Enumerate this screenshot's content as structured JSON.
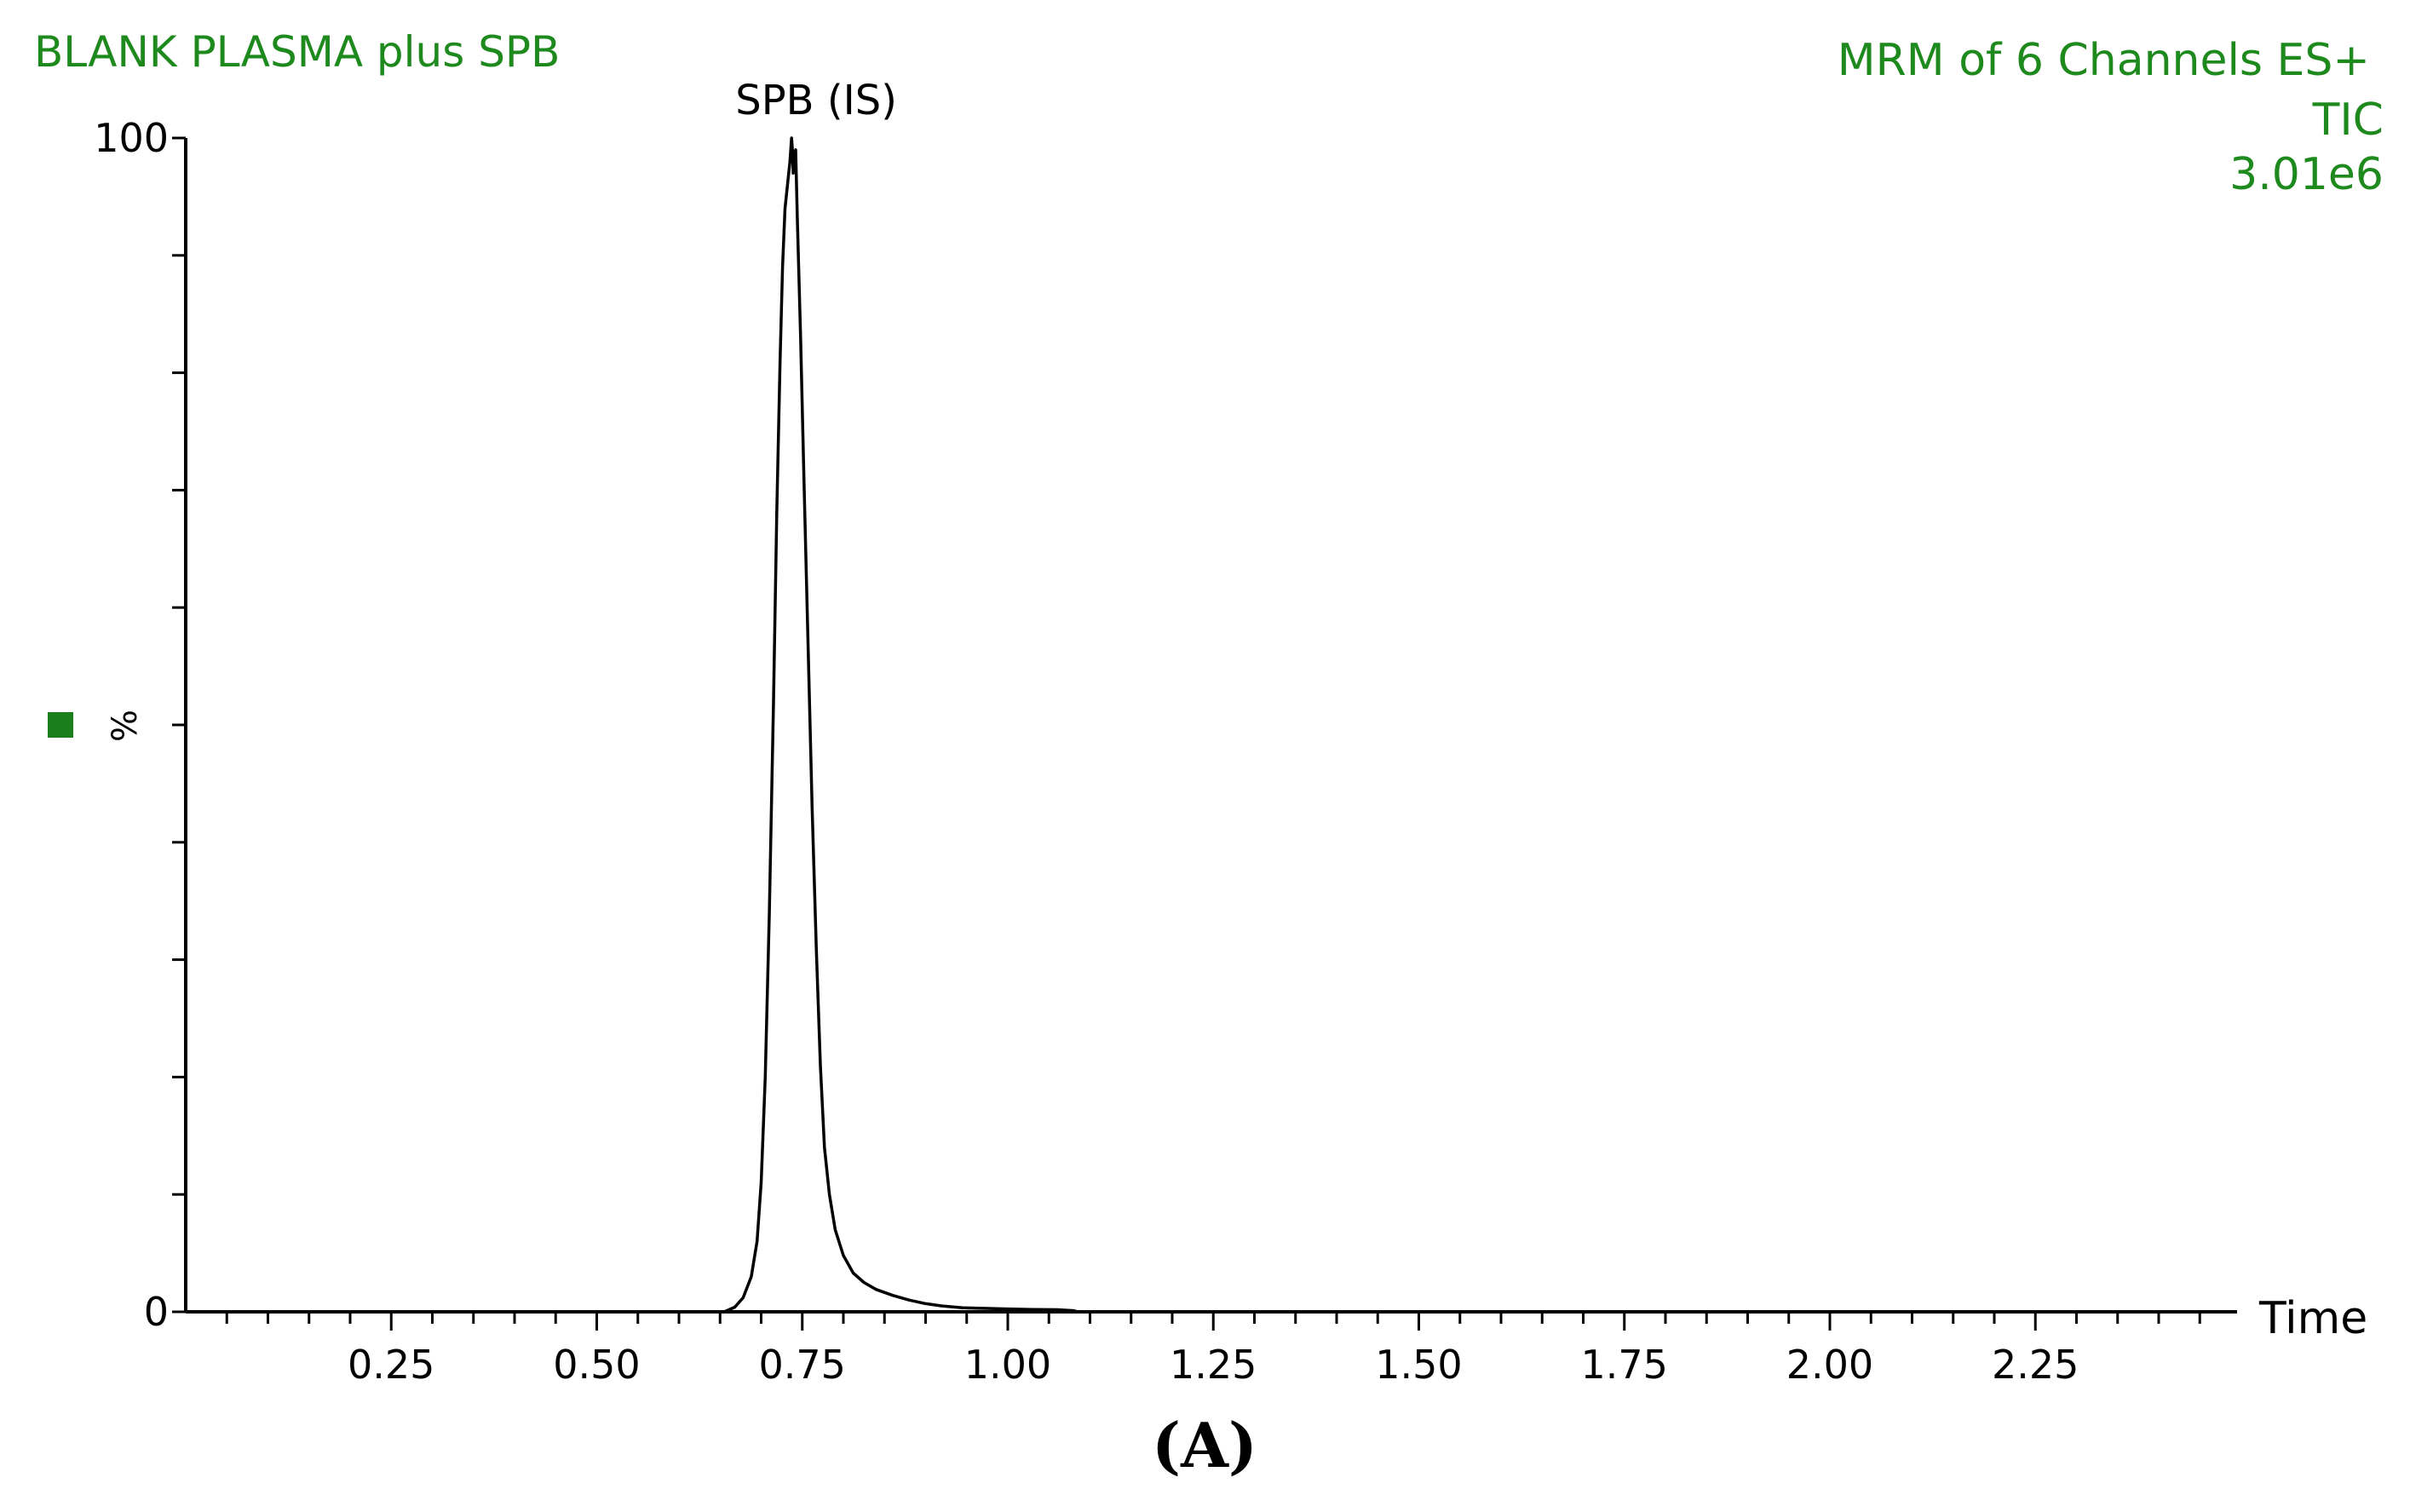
{
  "header": {
    "sample_name": "BLANK PLASMA plus SPB",
    "channel_info": "MRM of 6 Channels ES+",
    "trace_type": "TIC",
    "intensity_scale": "3.01e6"
  },
  "legend_marker_color": "#1a7f1a",
  "text_color": "#1e8a1e",
  "line_color": "#000000",
  "panel_label": "(A)",
  "chart_data": {
    "type": "line",
    "title": "BLANK PLASMA plus SPB",
    "xlabel": "Time",
    "ylabel": "%",
    "xlim": [
      0.0,
      2.5
    ],
    "ylim": [
      0,
      100
    ],
    "x_ticks": [
      0.25,
      0.5,
      0.75,
      1.0,
      1.25,
      1.5,
      1.75,
      2.0,
      2.25
    ],
    "x_tick_labels": [
      "0.25",
      "0.50",
      "0.75",
      "1.00",
      "1.25",
      "1.50",
      "1.75",
      "2.00",
      "2.25"
    ],
    "y_tick_labels": [
      {
        "value": 100,
        "label": "100"
      },
      {
        "value": 0,
        "label": "0"
      }
    ],
    "grid": false,
    "annotations": [
      {
        "text": "SPB (IS)",
        "x": 0.74,
        "y": 100
      }
    ],
    "series": [
      {
        "x": [
          0.0,
          0.655,
          0.668,
          0.678,
          0.688,
          0.695,
          0.7,
          0.705,
          0.71,
          0.715,
          0.719,
          0.723,
          0.726,
          0.729,
          0.732,
          0.735,
          0.737,
          0.738,
          0.739,
          0.74,
          0.742,
          0.744,
          0.748,
          0.752,
          0.757,
          0.762,
          0.767,
          0.772,
          0.777,
          0.783,
          0.79,
          0.8,
          0.812,
          0.825,
          0.84,
          0.86,
          0.88,
          0.9,
          0.92,
          0.945,
          0.97,
          1.0,
          1.03,
          1.06,
          1.08,
          1.085,
          1.15,
          1.5,
          2.0,
          2.5
        ],
        "y": [
          0,
          0,
          0.4,
          1.2,
          3.0,
          6.0,
          11.0,
          20.0,
          34.0,
          52.0,
          68.0,
          81.0,
          89.0,
          94.0,
          96.0,
          98.0,
          100.0,
          99.0,
          97.0,
          98.5,
          99.0,
          93.0,
          83.0,
          71.0,
          57.0,
          43.0,
          31.0,
          21.0,
          14.0,
          10.0,
          7.0,
          4.8,
          3.3,
          2.5,
          1.9,
          1.4,
          1.0,
          0.7,
          0.5,
          0.35,
          0.3,
          0.25,
          0.2,
          0.18,
          0.1,
          0,
          0,
          0,
          0,
          0
        ]
      }
    ]
  }
}
